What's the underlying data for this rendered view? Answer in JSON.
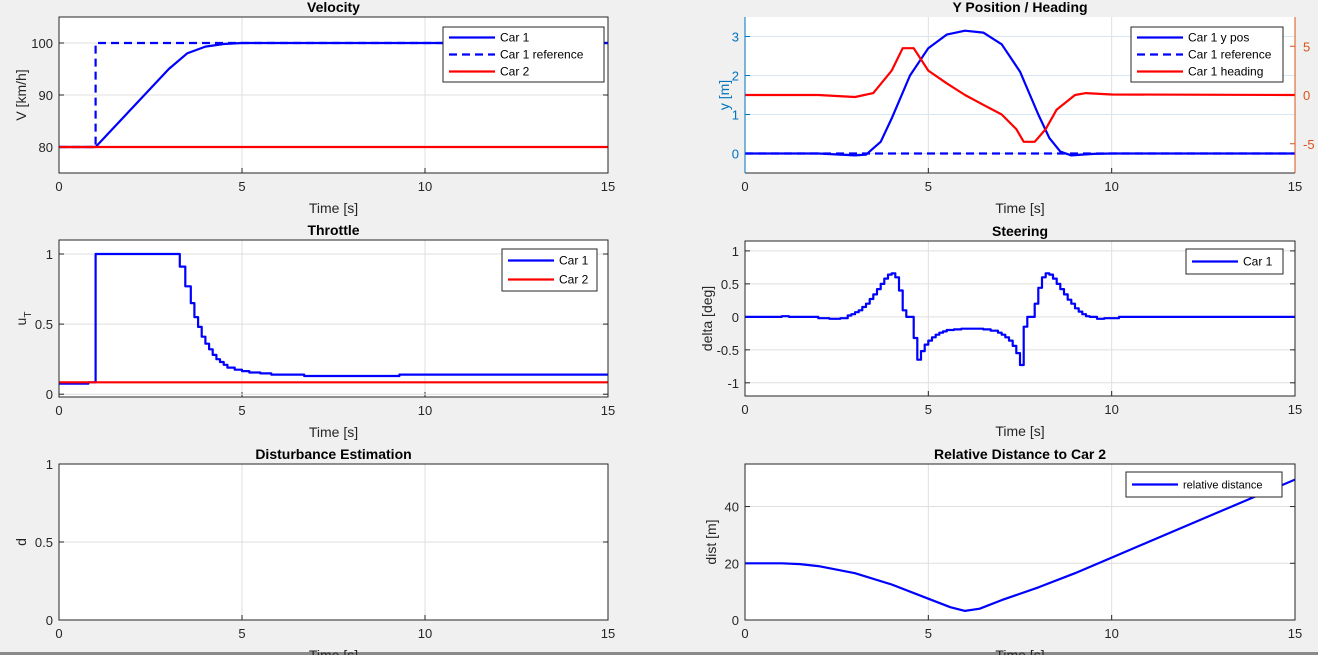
{
  "chart_data": [
    {
      "type": "line",
      "title": "Velocity",
      "xlabel": "Time [s]",
      "ylabel": "V [km/h]",
      "xlim": [
        0,
        15
      ],
      "ylim": [
        75,
        105
      ],
      "xticks": [
        0,
        5,
        10,
        15
      ],
      "yticks": [
        80,
        90,
        100
      ],
      "grid": true,
      "legend": "top-right",
      "series": [
        {
          "name": "Car 1",
          "color": "#0000ff",
          "style": "solid",
          "x": [
            0,
            1,
            2,
            3,
            3.5,
            4,
            4.5,
            5,
            15
          ],
          "y": [
            80,
            80,
            87.5,
            95,
            98,
            99.3,
            99.8,
            100,
            100
          ]
        },
        {
          "name": "Car 1 reference",
          "color": "#0000ff",
          "style": "dashed",
          "x": [
            0,
            1,
            1,
            15
          ],
          "y": [
            80,
            80,
            100,
            100
          ]
        },
        {
          "name": "Car 2",
          "color": "#ff0000",
          "style": "solid",
          "x": [
            0,
            15
          ],
          "y": [
            80,
            80
          ]
        }
      ]
    },
    {
      "type": "line",
      "title": "Y Position / Heading",
      "xlabel": "Time [s]",
      "ylabel": "y [m]",
      "left_axis_color": "#0072bd",
      "right_axis_color": "#d95319",
      "xlim": [
        0,
        15
      ],
      "ylim": [
        -0.5,
        3.5
      ],
      "ylim_right": [
        -8,
        8
      ],
      "xticks": [
        0,
        5,
        10,
        15
      ],
      "yticks": [
        0,
        1,
        2,
        3
      ],
      "yticks_right": [
        -5,
        0,
        5
      ],
      "grid": true,
      "legend": "top-right",
      "series": [
        {
          "name": "Car 1 y pos",
          "color": "#0000ff",
          "style": "solid",
          "axis": "left",
          "x": [
            0,
            2,
            3,
            3.3,
            3.7,
            4,
            4.5,
            5,
            5.5,
            6,
            6.5,
            7,
            7.5,
            8,
            8.3,
            8.6,
            8.9,
            9.5,
            10,
            15
          ],
          "y": [
            0,
            0,
            -0.05,
            -0.03,
            0.3,
            0.9,
            2,
            2.7,
            3.05,
            3.15,
            3.1,
            2.8,
            2.1,
            1,
            0.4,
            0.05,
            -0.05,
            -0.01,
            0,
            0
          ]
        },
        {
          "name": "Car 1 reference",
          "color": "#0000ff",
          "style": "dashed",
          "axis": "left",
          "x": [
            0,
            15
          ],
          "y": [
            0,
            0
          ]
        },
        {
          "name": "Car 1 heading",
          "color": "#ff0000",
          "style": "solid",
          "axis": "right",
          "x": [
            0,
            2,
            3,
            3.5,
            4,
            4.3,
            4.6,
            5,
            5.5,
            6,
            6.5,
            7,
            7.4,
            7.6,
            7.9,
            8.2,
            8.5,
            9,
            9.3,
            10,
            15
          ],
          "y": [
            0,
            0,
            -0.2,
            0.2,
            2.5,
            4.8,
            4.8,
            2.5,
            1.2,
            0,
            -1,
            -2,
            -3.5,
            -4.8,
            -4.8,
            -3.5,
            -1.5,
            0,
            0.2,
            0.05,
            0
          ]
        }
      ]
    },
    {
      "type": "line",
      "title": "Throttle",
      "xlabel": "Time [s]",
      "ylabel": "u",
      "ylabel_subscript": "T",
      "xlim": [
        0,
        15
      ],
      "ylim": [
        -0.02,
        1.1
      ],
      "xticks": [
        0,
        5,
        10,
        15
      ],
      "yticks": [
        0,
        0.5,
        1
      ],
      "grid": true,
      "legend": "top-right",
      "series": [
        {
          "name": "Car 1",
          "color": "#0000ff",
          "style": "stairs",
          "x": [
            0,
            0.8,
            1,
            3.3,
            3.45,
            3.6,
            3.7,
            3.8,
            3.9,
            4.0,
            4.1,
            4.2,
            4.3,
            4.4,
            4.5,
            4.6,
            4.8,
            5,
            5.2,
            5.5,
            5.8,
            6.7,
            9.3,
            15
          ],
          "y": [
            0.075,
            0.085,
            1,
            0.91,
            0.77,
            0.65,
            0.55,
            0.48,
            0.41,
            0.36,
            0.32,
            0.28,
            0.25,
            0.23,
            0.21,
            0.19,
            0.175,
            0.165,
            0.155,
            0.148,
            0.14,
            0.13,
            0.14,
            0.14
          ]
        },
        {
          "name": "Car 2",
          "color": "#ff0000",
          "style": "solid",
          "x": [
            0,
            15
          ],
          "y": [
            0.085,
            0.085
          ]
        }
      ]
    },
    {
      "type": "line",
      "title": "Steering",
      "xlabel": "Time [s]",
      "ylabel": "delta [deg]",
      "xlim": [
        0,
        15
      ],
      "ylim": [
        -1.2,
        1.15
      ],
      "xticks": [
        0,
        5,
        10,
        15
      ],
      "yticks": [
        -1,
        -0.5,
        0,
        0.5,
        1
      ],
      "grid": true,
      "legend": "top-right",
      "series": [
        {
          "name": "Car 1",
          "color": "#0000ff",
          "style": "stairs",
          "x": [
            0,
            1,
            1.2,
            2,
            2.3,
            2.6,
            2.8,
            2.9,
            3.0,
            3.1,
            3.2,
            3.3,
            3.4,
            3.5,
            3.6,
            3.7,
            3.8,
            3.9,
            4.0,
            4.1,
            4.2,
            4.3,
            4.4,
            4.6,
            4.7,
            4.8,
            4.9,
            5.0,
            5.1,
            5.2,
            5.3,
            5.4,
            5.5,
            5.7,
            5.9,
            6.5,
            6.7,
            6.9,
            7.0,
            7.1,
            7.2,
            7.3,
            7.4,
            7.5,
            7.6,
            7.7,
            7.9,
            8.0,
            8.1,
            8.2,
            8.3,
            8.4,
            8.5,
            8.6,
            8.7,
            8.8,
            8.9,
            9.0,
            9.1,
            9.2,
            9.3,
            9.4,
            9.6,
            9.8,
            10.2,
            15
          ],
          "y": [
            0,
            0.01,
            0,
            -0.02,
            -0.03,
            -0.02,
            0.02,
            0.04,
            0.07,
            0.1,
            0.15,
            0.2,
            0.27,
            0.34,
            0.42,
            0.5,
            0.58,
            0.64,
            0.66,
            0.6,
            0.4,
            0.1,
            0,
            -0.32,
            -0.65,
            -0.52,
            -0.42,
            -0.36,
            -0.31,
            -0.27,
            -0.24,
            -0.22,
            -0.2,
            -0.19,
            -0.18,
            -0.19,
            -0.21,
            -0.24,
            -0.27,
            -0.31,
            -0.36,
            -0.44,
            -0.55,
            -0.73,
            -0.15,
            0,
            0.2,
            0.44,
            0.6,
            0.66,
            0.64,
            0.58,
            0.5,
            0.42,
            0.34,
            0.26,
            0.2,
            0.13,
            0.08,
            0.04,
            0.01,
            0,
            -0.03,
            -0.02,
            0,
            0
          ]
        }
      ]
    },
    {
      "type": "line",
      "title": "Disturbance Estimation",
      "xlabel": "Time [s]",
      "ylabel": "d",
      "xlim": [
        0,
        15
      ],
      "ylim": [
        0,
        1
      ],
      "xticks": [
        0,
        5,
        10,
        15
      ],
      "yticks": [
        0,
        0.5,
        1
      ],
      "grid": true,
      "series": []
    },
    {
      "type": "line",
      "title": "Relative Distance to Car 2",
      "xlabel": "Time [s]",
      "ylabel": "dist [m]",
      "xlim": [
        0,
        15
      ],
      "ylim": [
        0,
        55
      ],
      "xticks": [
        0,
        5,
        10,
        15
      ],
      "yticks": [
        0,
        20,
        40
      ],
      "grid": true,
      "legend": "top-right",
      "series": [
        {
          "name": "relative distance",
          "color": "#0000ff",
          "style": "solid",
          "x": [
            0,
            1,
            1.5,
            2,
            3,
            4,
            5,
            5.6,
            6,
            6.4,
            7,
            8,
            9,
            10,
            11,
            12,
            13,
            14,
            15
          ],
          "y": [
            20,
            20,
            19.7,
            19,
            16.5,
            12.5,
            7.5,
            4.5,
            3.2,
            4,
            7,
            11.5,
            16.5,
            22,
            27.5,
            33,
            38.5,
            44,
            49.5
          ]
        }
      ]
    }
  ]
}
